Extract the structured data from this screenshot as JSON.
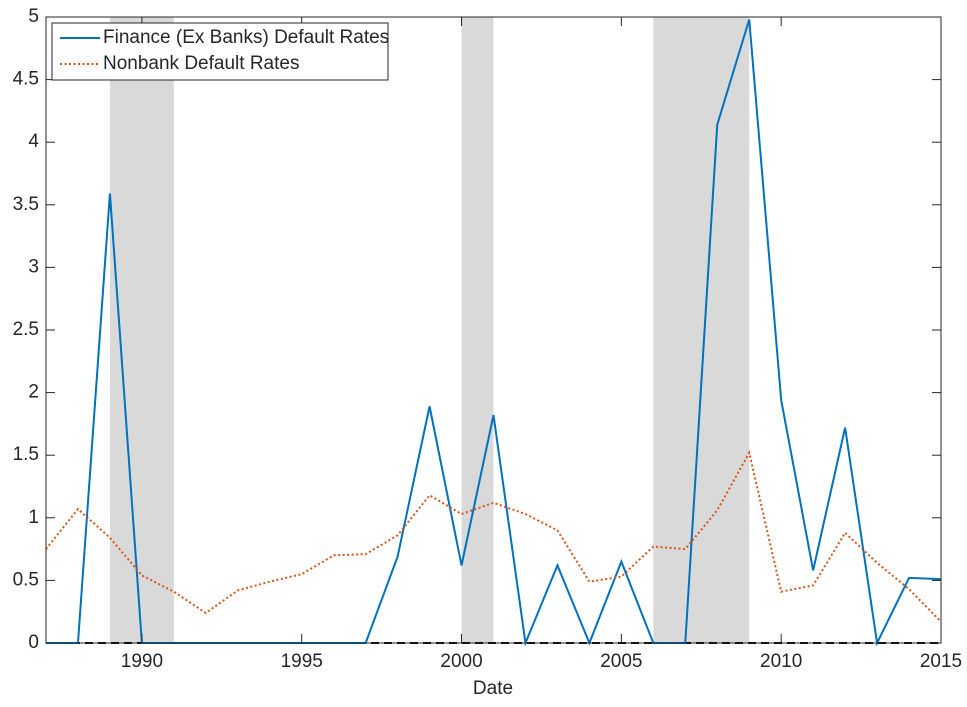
{
  "chart_data": {
    "type": "line",
    "x": [
      1987,
      1988,
      1989,
      1990,
      1991,
      1992,
      1993,
      1994,
      1995,
      1996,
      1997,
      1998,
      1999,
      2000,
      2001,
      2002,
      2003,
      2004,
      2005,
      2006,
      2007,
      2008,
      2009,
      2010,
      2011,
      2012,
      2013,
      2014,
      2015
    ],
    "series": [
      {
        "name": "Finance (Ex Banks) Default Rates",
        "color": "#0072bd",
        "style": "solid",
        "values": [
          0,
          0,
          3.59,
          0,
          0,
          0,
          0,
          0,
          0,
          0,
          0,
          0.69,
          1.89,
          0.62,
          1.82,
          0,
          0.62,
          0,
          0.65,
          0,
          0,
          4.14,
          4.98,
          1.94,
          0.58,
          1.72,
          0,
          0.52,
          0.51
        ]
      },
      {
        "name": "Nonbank Default Rates",
        "color": "#d95319",
        "style": "dotted",
        "values": [
          0.75,
          1.07,
          0.84,
          0.54,
          0.41,
          0.24,
          0.42,
          0.49,
          0.55,
          0.7,
          0.71,
          0.86,
          1.18,
          1.03,
          1.12,
          1.03,
          0.9,
          0.49,
          0.53,
          0.77,
          0.75,
          1.06,
          1.52,
          0.41,
          0.46,
          0.88,
          0.64,
          0.43,
          0.17
        ]
      }
    ],
    "shaded_regions": [
      [
        1989,
        1991
      ],
      [
        2000,
        2001
      ],
      [
        2006,
        2009
      ]
    ],
    "shade_color": "#d9d9d9",
    "hline": 0,
    "xlabel": "Date",
    "xlim": [
      1987,
      2015
    ],
    "xticks": [
      1990,
      1995,
      2000,
      2005,
      2010,
      2015
    ],
    "ylim": [
      0,
      5
    ],
    "yticks": [
      0,
      0.5,
      1,
      1.5,
      2,
      2.5,
      3,
      3.5,
      4,
      4.5,
      5
    ],
    "legend_position": "upper-left"
  }
}
